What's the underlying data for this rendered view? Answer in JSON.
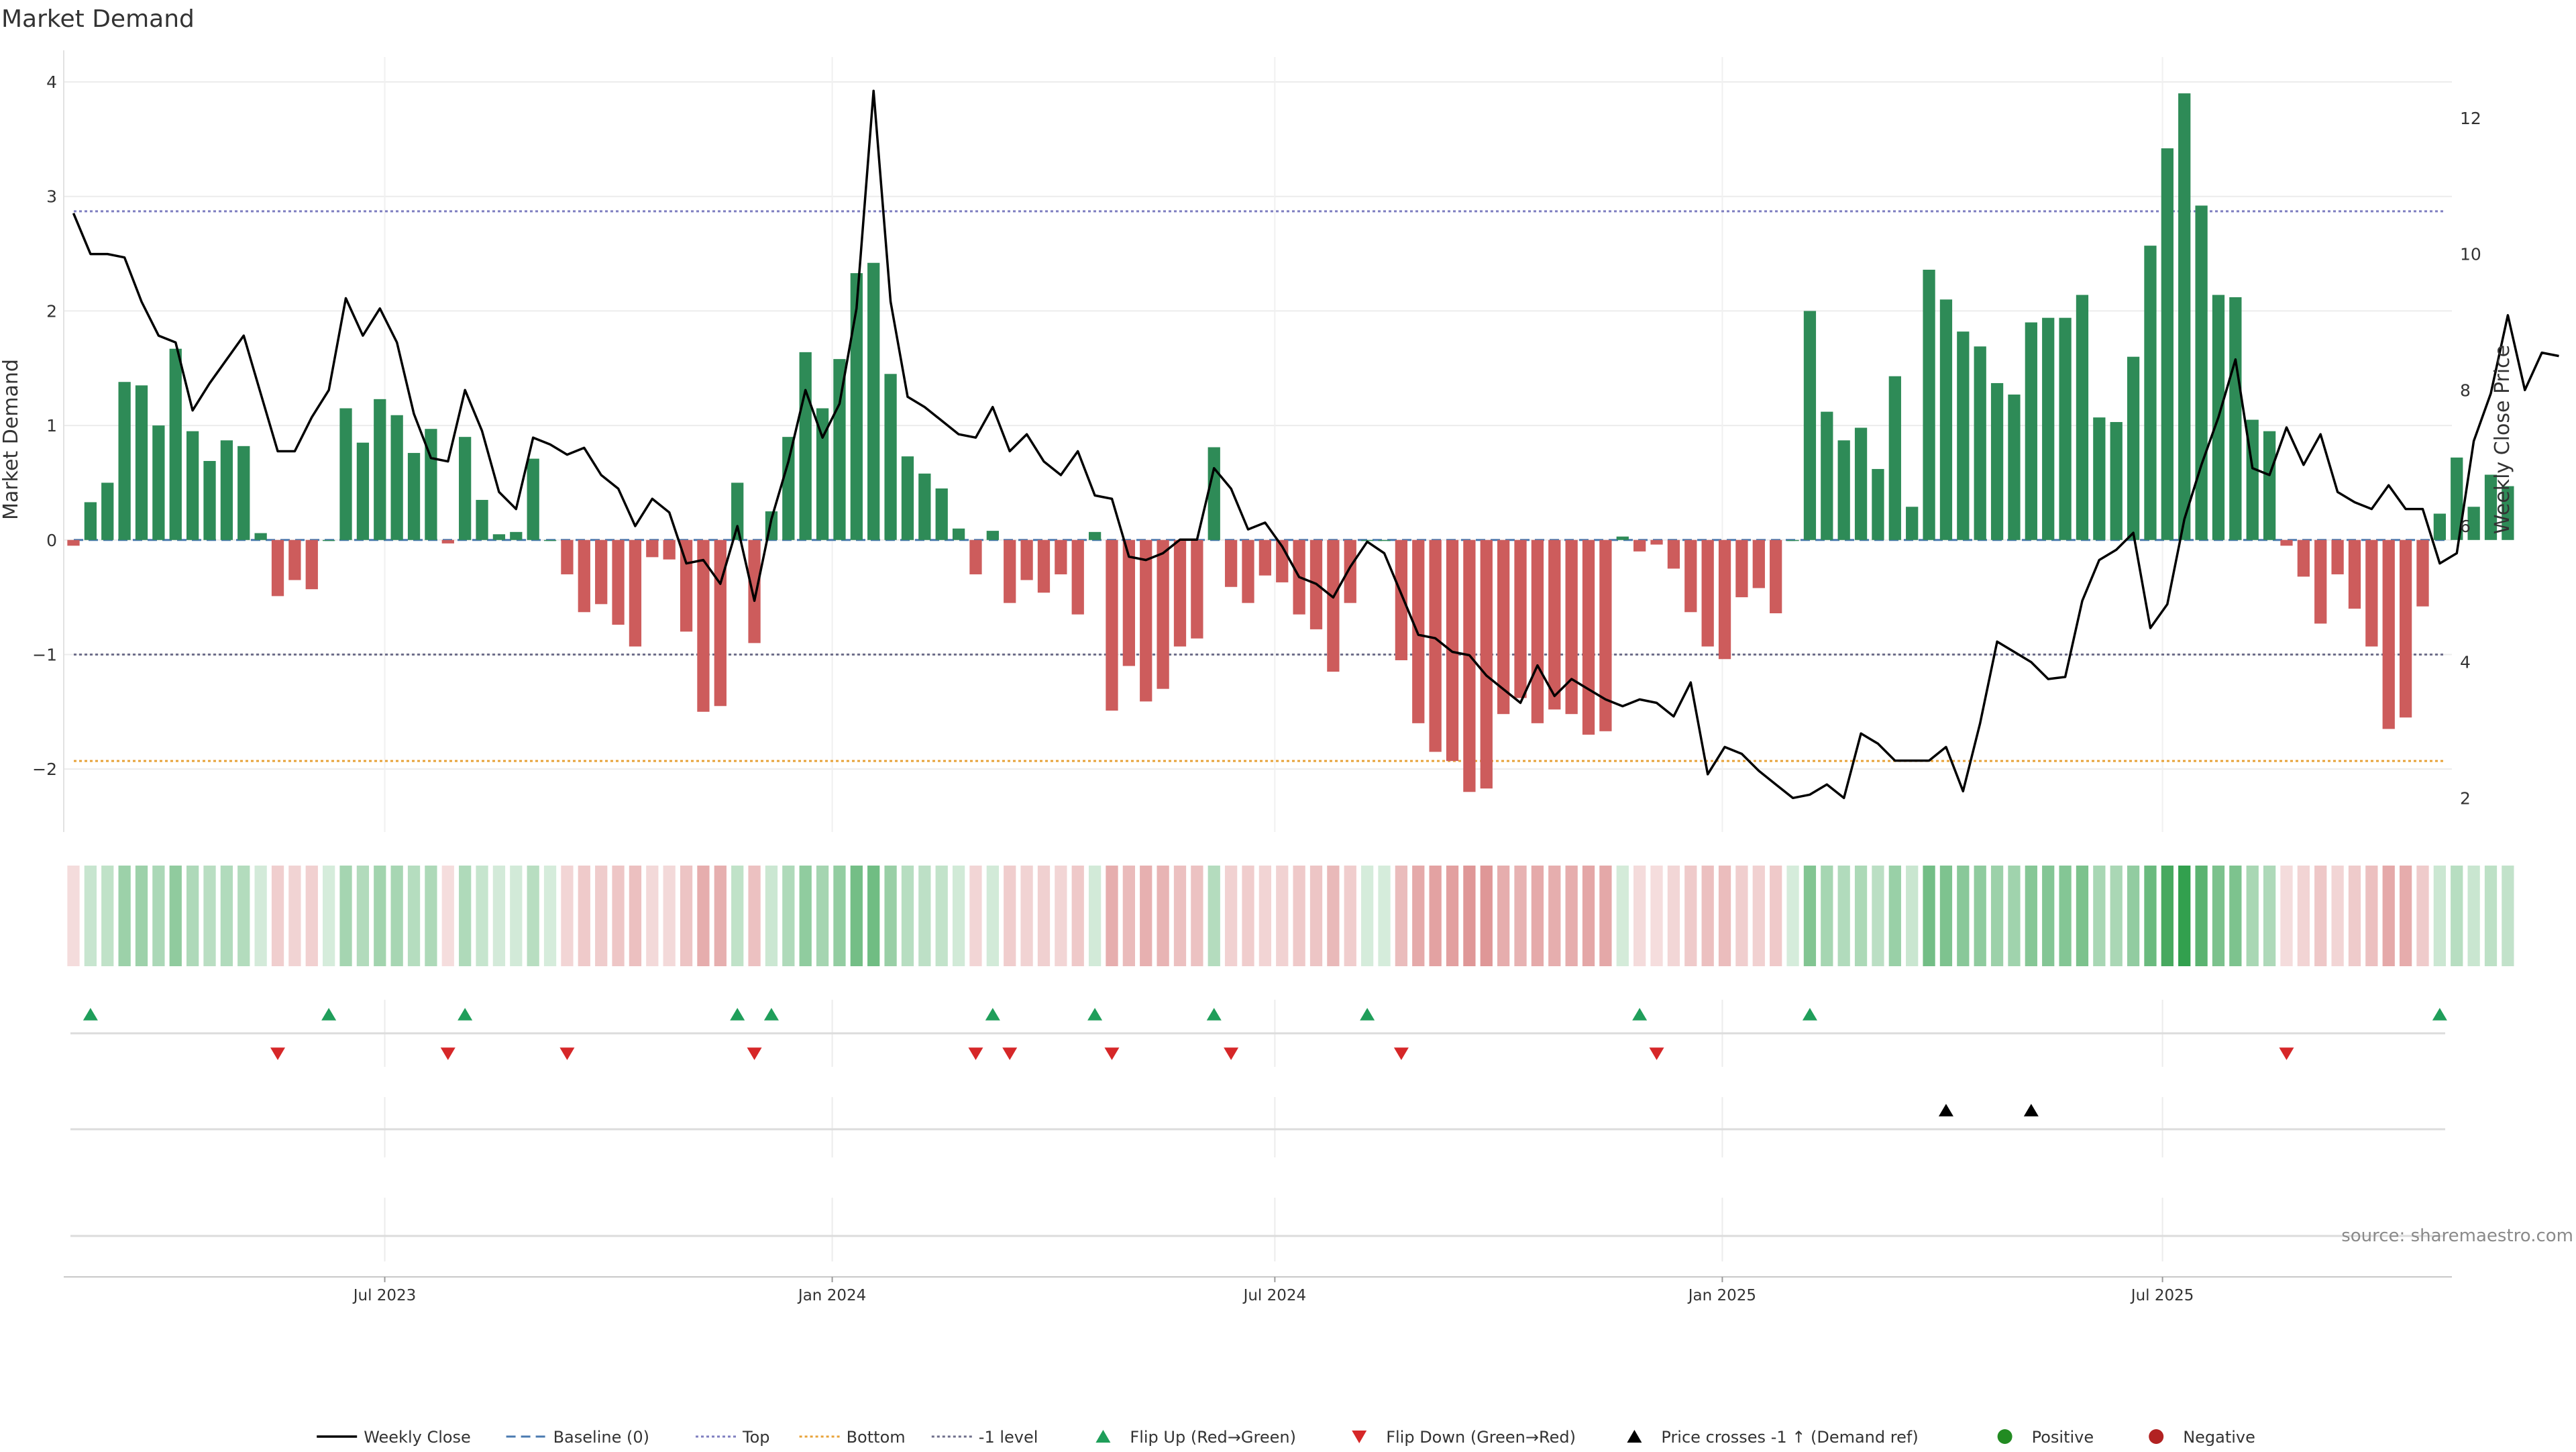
{
  "chart_data": {
    "type": "bar",
    "title": "Market Demand",
    "ylabel_left": "Market Demand",
    "ylabel_right": "Weekly Close Price",
    "source": "source: sharemaestro.com",
    "ylim_left": [
      -2.55,
      4.1
    ],
    "ylim_right": [
      1.5,
      12.7
    ],
    "yticks_left": [
      4,
      3,
      2,
      1,
      0,
      -1,
      -2
    ],
    "yticks_left_labels": [
      "4",
      "3",
      "2",
      "1",
      "0",
      "−1",
      "−2"
    ],
    "yticks_right": [
      12,
      10,
      8,
      6,
      4,
      2
    ],
    "yticks_right_labels": [
      "12",
      "10",
      "8",
      "6",
      "4",
      "2"
    ],
    "x_start": "2023-02-19",
    "x_end": "2025-10-28",
    "xticks": [
      {
        "date": "2023-07-01",
        "label": "Jul 2023"
      },
      {
        "date": "2024-01-01",
        "label": "Jan 2024"
      },
      {
        "date": "2024-07-01",
        "label": "Jul 2024"
      },
      {
        "date": "2025-01-01",
        "label": "Jan 2025"
      },
      {
        "date": "2025-07-01",
        "label": "Jul 2025"
      }
    ],
    "week_start": "2023-02-23",
    "reference_lines": [
      {
        "name": "Top",
        "value": 2.87,
        "color": "#7f7fc0",
        "style": "dotted"
      },
      {
        "name": "-1 level",
        "value": -1.0,
        "color": "#6e6e8a",
        "style": "dotted"
      },
      {
        "name": "Bottom",
        "value": -1.93,
        "color": "#e8a33a",
        "style": "dotted"
      },
      {
        "name": "Baseline (0)",
        "value": 0,
        "color": "#4a7ab0",
        "style": "dashed"
      }
    ],
    "colors": {
      "positive": "#2e8b57",
      "negative": "#cd5c5c",
      "price": "#000000",
      "flip_up": "#1f9e5a",
      "flip_down": "#d62728",
      "cross": "#000000",
      "heat_positive": "#2e9e4a",
      "heat_negative": "#cd5c5c"
    },
    "series": [
      {
        "name": "Market Demand",
        "values": [
          -0.05,
          0.33,
          0.5,
          1.38,
          1.35,
          1.0,
          1.67,
          0.95,
          0.69,
          0.87,
          0.82,
          0.06,
          -0.49,
          -0.35,
          -0.43,
          0.0,
          1.15,
          0.85,
          1.23,
          1.09,
          0.76,
          0.97,
          -0.03,
          0.9,
          0.35,
          0.05,
          0.07,
          0.71,
          0.0,
          -0.3,
          -0.63,
          -0.56,
          -0.74,
          -0.93,
          -0.15,
          -0.17,
          -0.8,
          -1.5,
          -1.45,
          0.5,
          -0.9,
          0.25,
          0.9,
          1.64,
          1.15,
          1.58,
          2.33,
          2.42,
          1.45,
          0.73,
          0.58,
          0.45,
          0.1,
          -0.3,
          0.08,
          -0.55,
          -0.35,
          -0.46,
          -0.3,
          -0.65,
          0.07,
          -1.49,
          -1.1,
          -1.41,
          -1.3,
          -0.93,
          -0.86,
          0.81,
          -0.41,
          -0.55,
          -0.31,
          -0.37,
          -0.65,
          -0.78,
          -1.15,
          -0.55,
          0.0,
          0.0,
          -1.05,
          -1.6,
          -1.85,
          -1.93,
          -2.2,
          -2.17,
          -1.52,
          -1.38,
          -1.6,
          -1.48,
          -1.52,
          -1.7,
          -1.67,
          0.03,
          -0.1,
          -0.04,
          -0.25,
          -0.63,
          -0.93,
          -1.04,
          -0.5,
          -0.42,
          -0.64,
          0.0,
          2.0,
          1.12,
          0.87,
          0.98,
          0.62,
          1.43,
          0.29,
          2.36,
          2.1,
          1.82,
          1.69,
          1.37,
          1.27,
          1.9,
          1.94,
          1.94,
          2.14,
          1.07,
          1.03,
          1.6,
          2.57,
          3.42,
          3.9,
          2.92,
          2.14,
          2.12,
          1.05,
          0.95,
          -0.05,
          -0.32,
          -0.73,
          -0.3,
          -0.6,
          -0.93,
          -1.65,
          -1.55,
          -0.58,
          0.23,
          0.72,
          0.29,
          0.57,
          0.47
        ]
      },
      {
        "name": "Weekly Close",
        "values": [
          10.6,
          10.0,
          10.0,
          9.95,
          9.3,
          8.8,
          8.7,
          7.7,
          8.1,
          8.45,
          8.8,
          7.95,
          7.1,
          7.1,
          7.6,
          8.0,
          9.35,
          8.8,
          9.2,
          8.7,
          7.65,
          7.0,
          6.95,
          8.0,
          7.4,
          6.5,
          6.25,
          7.3,
          7.2,
          7.05,
          7.15,
          6.75,
          6.55,
          6.0,
          6.4,
          6.2,
          5.45,
          5.5,
          5.15,
          6.0,
          4.9,
          6.1,
          6.95,
          8.0,
          7.3,
          7.8,
          9.2,
          12.4,
          9.3,
          7.9,
          7.75,
          7.55,
          7.35,
          7.3,
          7.75,
          7.1,
          7.35,
          6.95,
          6.75,
          7.1,
          6.45,
          6.4,
          5.55,
          5.5,
          5.6,
          5.8,
          5.8,
          6.85,
          6.55,
          5.95,
          6.05,
          5.7,
          5.25,
          5.15,
          4.95,
          5.4,
          5.77,
          5.6,
          5.0,
          4.4,
          4.35,
          4.15,
          4.1,
          3.8,
          3.6,
          3.4,
          3.95,
          3.5,
          3.75,
          3.6,
          3.45,
          3.35,
          3.45,
          3.4,
          3.2,
          3.7,
          2.35,
          2.75,
          2.65,
          2.4,
          2.2,
          2.0,
          2.05,
          2.2,
          2.0,
          2.95,
          2.8,
          2.55,
          2.55,
          2.55,
          2.75,
          2.1,
          3.1,
          4.3,
          4.15,
          4.0,
          3.75,
          3.78,
          4.9,
          5.5,
          5.65,
          5.9,
          4.5,
          4.85,
          6.1,
          6.9,
          7.6,
          8.45,
          6.85,
          6.75,
          7.45,
          6.9,
          7.35,
          6.5,
          6.35,
          6.25,
          6.6,
          6.25,
          6.25,
          5.45,
          5.6,
          7.25,
          7.95,
          9.1,
          8.0,
          8.55,
          8.5
        ]
      }
    ],
    "flip_up_weeks": [
      1,
      15,
      23,
      39,
      41,
      54,
      60,
      67,
      76,
      92,
      102,
      139
    ],
    "flip_down_weeks": [
      12,
      22,
      29,
      40,
      53,
      55,
      61,
      68,
      78,
      93,
      130
    ],
    "price_cross_weeks": [
      110,
      115
    ],
    "legend": [
      {
        "label": "Weekly Close",
        "icon": "solid-line"
      },
      {
        "label": "Baseline (0)",
        "icon": "dashed-line"
      },
      {
        "label": "Top",
        "icon": "dotted-line-purple"
      },
      {
        "label": "Bottom",
        "icon": "dotted-line-orange"
      },
      {
        "label": "-1 level",
        "icon": "dotted-line-gray"
      },
      {
        "label": "Flip Up (Red→Green)",
        "icon": "triangle-up-green"
      },
      {
        "label": "Flip Down (Green→Red)",
        "icon": "triangle-down-red"
      },
      {
        "label": "Price crosses -1 ↑ (Demand ref)",
        "icon": "triangle-up-black"
      },
      {
        "label": "Positive",
        "icon": "circle-green"
      },
      {
        "label": "Negative",
        "icon": "circle-red"
      }
    ],
    "grid": true,
    "legend_position": "bottom-center"
  }
}
